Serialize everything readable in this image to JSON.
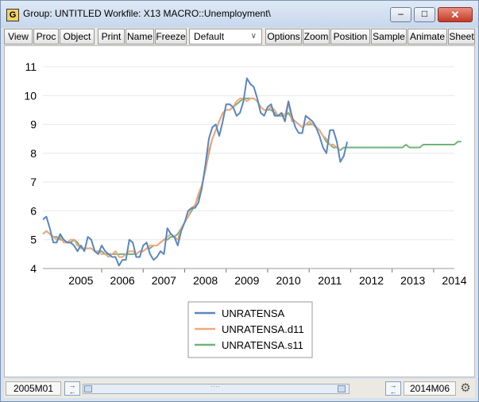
{
  "window": {
    "title": "Group: UNTITLED   Workfile: X13 MACRO::Unemployment\\",
    "icon_letter": "G",
    "controls": {
      "minimize": "–",
      "maximize": "□",
      "close": "✕"
    }
  },
  "toolbar": {
    "view": "View",
    "proc": "Proc",
    "object": "Object",
    "print": "Print",
    "name": "Name",
    "freeze": "Freeze",
    "combo_value": "Default",
    "options": "Options",
    "zoom": "Zoom",
    "position": "Position",
    "sample": "Sample",
    "animate": "Animate",
    "sheet": "Sheet"
  },
  "status": {
    "start": "2005M01",
    "end": "2014M06"
  },
  "colors": {
    "unratensa": "#5b86c0",
    "d11": "#f2a77d",
    "s11": "#6fb47a"
  },
  "chart_data": {
    "type": "line",
    "title": "",
    "xlabel": "",
    "ylabel": "",
    "ylim": [
      4,
      11
    ],
    "yticks": [
      4,
      5,
      6,
      7,
      8,
      9,
      10,
      11
    ],
    "xticks": [
      "2005",
      "2006",
      "2007",
      "2008",
      "2009",
      "2010",
      "2011",
      "2012",
      "2013",
      "2014"
    ],
    "x_start": "2004-08",
    "x_end": "2014-07",
    "grid": true,
    "legend_position": "bottom-center",
    "series": [
      {
        "name": "UNRATENSA",
        "color": "#5b86c0",
        "values": [
          5.7,
          5.8,
          5.4,
          4.9,
          4.9,
          5.2,
          5.0,
          4.9,
          4.9,
          4.8,
          4.6,
          4.8,
          4.6,
          5.1,
          5.0,
          4.6,
          4.5,
          4.8,
          4.6,
          4.5,
          4.4,
          4.4,
          4.1,
          4.3,
          4.3,
          5.0,
          4.9,
          4.4,
          4.4,
          4.8,
          4.9,
          4.5,
          4.3,
          4.4,
          4.6,
          4.5,
          5.4,
          5.2,
          5.1,
          4.8,
          5.3,
          5.6,
          6.0,
          6.1,
          6.1,
          6.3,
          6.8,
          7.6,
          8.5,
          8.9,
          9.0,
          8.6,
          9.1,
          9.7,
          9.7,
          9.6,
          9.3,
          9.4,
          9.8,
          10.6,
          10.4,
          10.3,
          9.9,
          9.4,
          9.3,
          9.6,
          9.7,
          9.3,
          9.3,
          9.4,
          9.1,
          9.8,
          9.3,
          8.9,
          8.7,
          8.7,
          9.3,
          9.2,
          9.1,
          8.9,
          8.6,
          8.2,
          8.0,
          8.8,
          8.8,
          8.4,
          7.7,
          7.9,
          8.4
        ],
        "start_index": 0
      },
      {
        "name": "UNRATENSA.d11",
        "color": "#f2a77d",
        "values": [
          5.2,
          5.3,
          5.2,
          5.1,
          5.0,
          5.1,
          4.9,
          4.9,
          5.0,
          5.0,
          4.8,
          4.7,
          4.7,
          4.7,
          4.7,
          4.6,
          4.6,
          4.5,
          4.5,
          4.4,
          4.5,
          4.6,
          4.4,
          4.4,
          4.5,
          4.6,
          4.6,
          4.5,
          4.6,
          4.6,
          4.7,
          4.8,
          4.8,
          4.8,
          4.9,
          5.0,
          5.1,
          5.2,
          5.1,
          5.0,
          5.4,
          5.6,
          5.8,
          6.1,
          6.2,
          6.6,
          6.9,
          7.4,
          8.1,
          8.5,
          8.8,
          9.1,
          9.4,
          9.5,
          9.5,
          9.6,
          9.8,
          9.9,
          9.9,
          9.8,
          9.9,
          9.9,
          9.8,
          9.6,
          9.5,
          9.5,
          9.6,
          9.5,
          9.3,
          9.4,
          9.3,
          9.8,
          9.1,
          9.1,
          9.0,
          8.9,
          9.0,
          9.1,
          9.0,
          8.9,
          8.8,
          8.6,
          8.5,
          8.3,
          8.3,
          8.2,
          8.1
        ],
        "start_index": 0
      },
      {
        "name": "UNRATENSA.s11",
        "color": "#6fb47a",
        "values": [
          5.2,
          5.3,
          5.2,
          5.1,
          5.1,
          5.0,
          5.0,
          4.9,
          4.9,
          5.0,
          4.9,
          4.7,
          4.7,
          4.7,
          4.7,
          4.6,
          4.6,
          4.6,
          4.5,
          4.5,
          4.5,
          4.5,
          4.5,
          4.5,
          4.5,
          4.5,
          4.5,
          4.5,
          4.6,
          4.6,
          4.7,
          4.7,
          4.8,
          4.8,
          4.9,
          5.0,
          5.0,
          5.1,
          5.1,
          5.2,
          5.4,
          5.6,
          5.8,
          6.0,
          6.2,
          6.5,
          6.9,
          7.4,
          8.0,
          8.5,
          8.8,
          9.1,
          9.4,
          9.5,
          9.5,
          9.6,
          9.7,
          9.8,
          9.9,
          9.9,
          9.9,
          9.9,
          9.8,
          9.6,
          9.5,
          9.5,
          9.5,
          9.4,
          9.3,
          9.3,
          9.3,
          9.4,
          9.2,
          9.1,
          9.0,
          8.9,
          9.0,
          9.0,
          9.0,
          8.9,
          8.8,
          8.6,
          8.4,
          8.3,
          8.2,
          8.2,
          8.1,
          8.2,
          8.2,
          8.2,
          8.2,
          8.2,
          8.2,
          8.2,
          8.2,
          8.2,
          8.2,
          8.2,
          8.2,
          8.2,
          8.2,
          8.2,
          8.2,
          8.2,
          8.2,
          8.3,
          8.2,
          8.2,
          8.2,
          8.2,
          8.3,
          8.3,
          8.3,
          8.3,
          8.3,
          8.3,
          8.3,
          8.3,
          8.3,
          8.3,
          8.4,
          8.4
        ],
        "start_index": 0
      }
    ]
  }
}
